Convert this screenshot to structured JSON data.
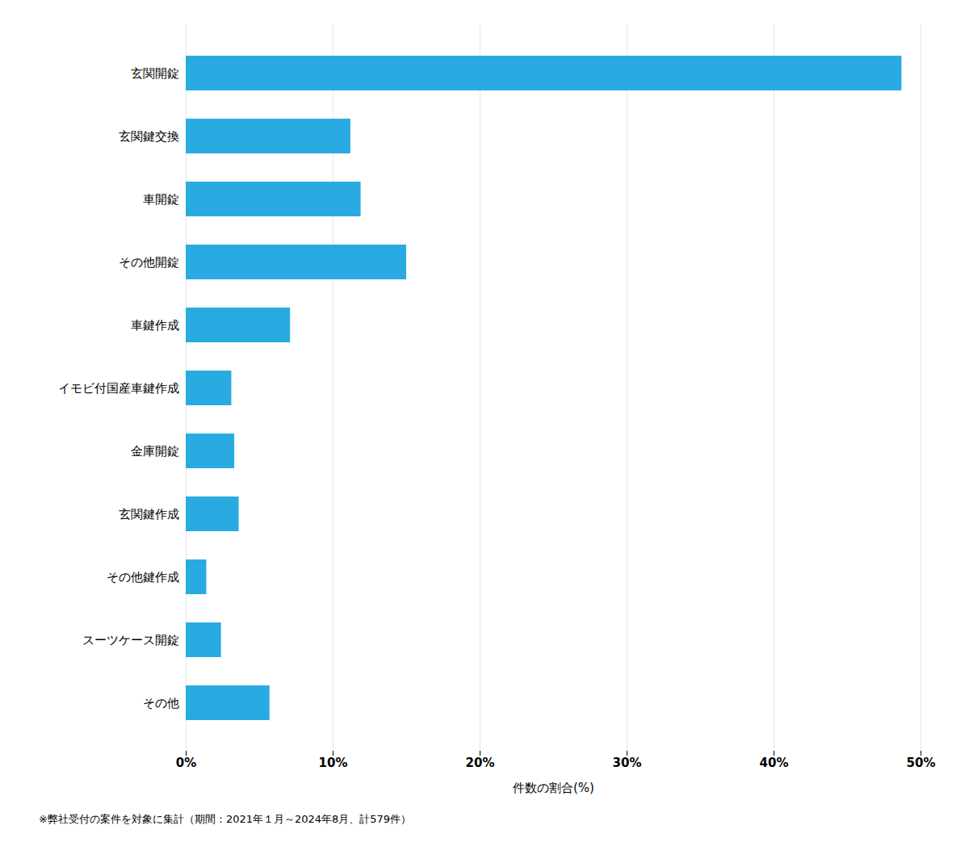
{
  "chart_data": {
    "type": "bar",
    "orientation": "horizontal",
    "categories": [
      "その他",
      "スーツケース開錠",
      "その他鍵作成",
      "玄関鍵作成",
      "金庫開錠",
      "イモビ付国産車鍵作成",
      "車鍵作成",
      "その他開錠",
      "車開錠",
      "玄関鍵交換",
      "玄関開錠"
    ],
    "values": [
      5.7,
      2.4,
      1.4,
      3.6,
      3.3,
      3.1,
      7.1,
      15.0,
      11.9,
      11.2,
      48.7
    ],
    "color": "#29ABE2",
    "xlabel": "件数の割合(%)",
    "xlim": [
      0,
      50
    ],
    "xticks": [
      {
        "value": 0,
        "label": "0%"
      },
      {
        "value": 10,
        "label": "10%"
      },
      {
        "value": 20,
        "label": "20%"
      },
      {
        "value": 30,
        "label": "30%"
      },
      {
        "value": 40,
        "label": "40%"
      },
      {
        "value": 50,
        "label": "50%"
      }
    ],
    "grid": true,
    "footnote": "※弊社受付の案件を対象に集計（期間：2021年１月～2024年8月、計579件）"
  }
}
